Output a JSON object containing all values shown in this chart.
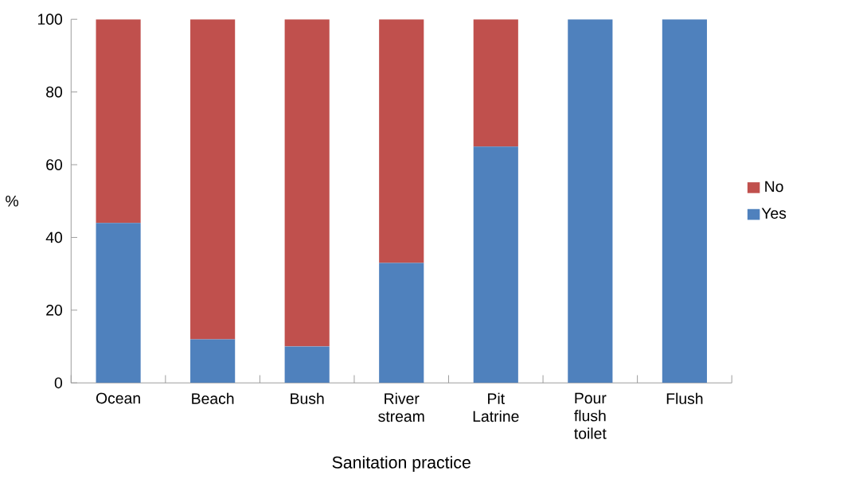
{
  "chart_data": {
    "type": "bar",
    "stacked": true,
    "xlabel": "Sanitation practice",
    "ylabel": "%",
    "categories": [
      "Ocean",
      "Beach",
      "Bush",
      "River stream",
      "Pit Latrine",
      "Pour flush toilet",
      "Flush"
    ],
    "series": [
      {
        "name": "Yes",
        "color": "#4f81bd",
        "values": [
          44,
          12,
          10,
          33,
          65,
          100,
          100
        ]
      },
      {
        "name": "No",
        "color": "#c0504d",
        "values": [
          56,
          88,
          90,
          67,
          35,
          0,
          0
        ]
      }
    ],
    "ylim": [
      0,
      100
    ],
    "yticks": [
      0,
      20,
      40,
      60,
      80,
      100
    ],
    "legend": "right"
  }
}
